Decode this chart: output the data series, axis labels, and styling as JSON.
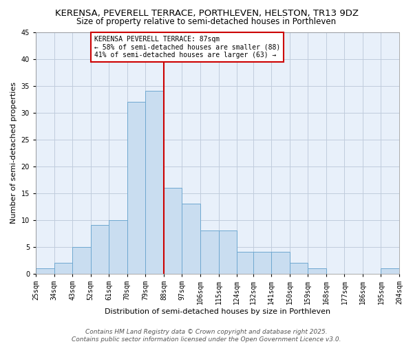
{
  "title": "KERENSA, PEVERELL TERRACE, PORTHLEVEN, HELSTON, TR13 9DZ",
  "subtitle": "Size of property relative to semi-detached houses in Porthleven",
  "xlabel": "Distribution of semi-detached houses by size in Porthleven",
  "ylabel": "Number of semi-detached properties",
  "bar_left_edges": [
    25,
    34,
    43,
    52,
    61,
    70,
    79,
    88,
    97,
    106,
    115,
    124,
    132,
    141,
    150,
    159,
    168,
    177,
    186,
    195
  ],
  "bar_heights": [
    1,
    2,
    5,
    9,
    10,
    32,
    34,
    16,
    13,
    8,
    8,
    4,
    4,
    4,
    2,
    1,
    0,
    0,
    0,
    1
  ],
  "bin_width": 9,
  "tick_labels": [
    "25sqm",
    "34sqm",
    "43sqm",
    "52sqm",
    "61sqm",
    "70sqm",
    "79sqm",
    "88sqm",
    "97sqm",
    "106sqm",
    "115sqm",
    "124sqm",
    "132sqm",
    "141sqm",
    "150sqm",
    "159sqm",
    "168sqm",
    "177sqm",
    "186sqm",
    "195sqm",
    "204sqm"
  ],
  "bar_color": "#c9ddf0",
  "bar_edge_color": "#6fa8d0",
  "vline_x": 88,
  "vline_color": "#cc0000",
  "ylim": [
    0,
    45
  ],
  "yticks": [
    0,
    5,
    10,
    15,
    20,
    25,
    30,
    35,
    40,
    45
  ],
  "annotation_title": "KERENSA PEVERELL TERRACE: 87sqm",
  "annotation_line1": "← 58% of semi-detached houses are smaller (88)",
  "annotation_line2": "41% of semi-detached houses are larger (63) →",
  "annotation_box_color": "#ffffff",
  "annotation_box_edge": "#cc0000",
  "footer1": "Contains HM Land Registry data © Crown copyright and database right 2025.",
  "footer2": "Contains public sector information licensed under the Open Government Licence v3.0.",
  "background_color": "#ffffff",
  "plot_bg_color": "#e8f0fa",
  "grid_color": "#c0ccdd",
  "title_fontsize": 9.5,
  "subtitle_fontsize": 8.5,
  "axis_label_fontsize": 8,
  "tick_fontsize": 7,
  "annotation_fontsize": 7,
  "footer_fontsize": 6.5
}
